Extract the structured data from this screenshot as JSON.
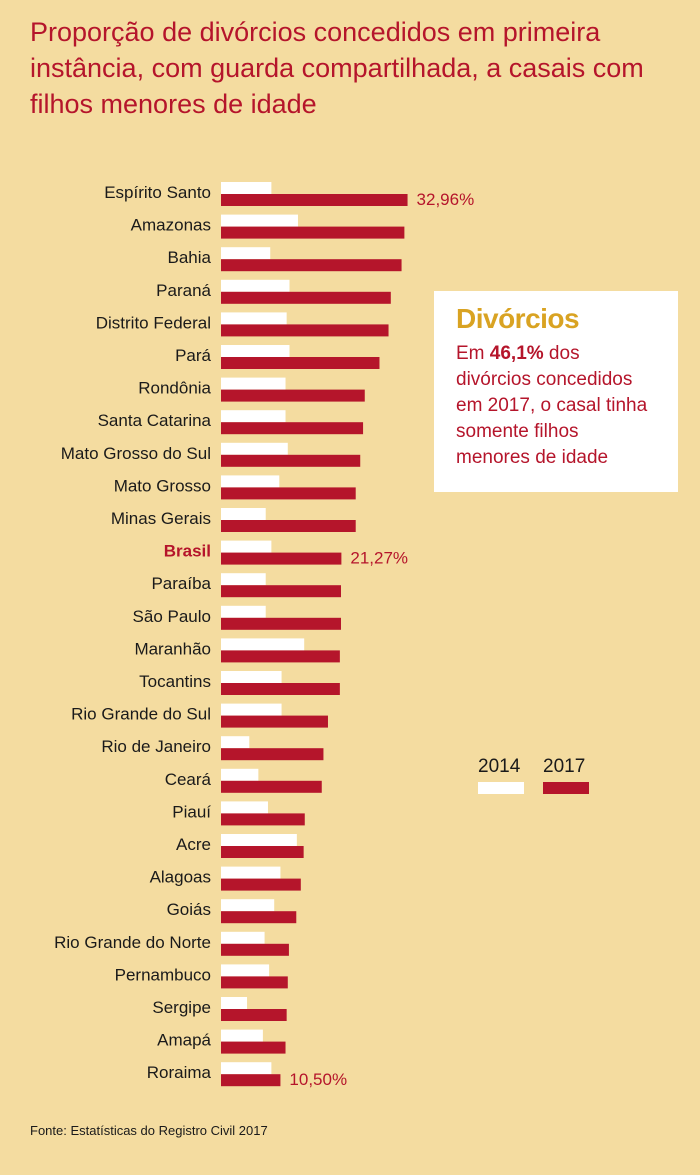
{
  "title": "Proporção de divórcios concedidos em primeira instância, com guarda compartilhada, a casais com filhos menores de idade",
  "infobox": {
    "heading": "Divórcios",
    "text_before": "Em ",
    "highlight": "46,1%",
    "text_after": " dos divórcios concedidos em 2017, o casal tinha somente filhos menores de idade"
  },
  "legend": {
    "label_2014": "2014",
    "label_2017": "2017"
  },
  "source": "Fonte: Estatísticas do Registro Civil 2017",
  "colors": {
    "s2014": "#ffffff",
    "s2017": "#b5152b",
    "background": "#f4dca0",
    "highlight": "#b5152b",
    "heading": "#d9a322"
  },
  "chart_data": {
    "type": "bar",
    "orientation": "horizontal",
    "title": "Proporção de divórcios concedidos em primeira instância, com guarda compartilhada, a casais com filhos menores de idade",
    "categories": [
      "Espírito Santo",
      "Amazonas",
      "Bahia",
      "Paraná",
      "Distrito Federal",
      "Pará",
      "Rondônia",
      "Santa Catarina",
      "Mato Grosso do Sul",
      "Mato Grosso",
      "Minas Gerais",
      "Brasil",
      "Paraíba",
      "São Paulo",
      "Maranhão",
      "Tocantins",
      "Rio Grande do Sul",
      "Rio de Janeiro",
      "Ceará",
      "Piauí",
      "Acre",
      "Alagoas",
      "Goiás",
      "Rio Grande do Norte",
      "Pernambuco",
      "Sergipe",
      "Amapá",
      "Roraima"
    ],
    "highlight_category": "Brasil",
    "unit": "%",
    "series": [
      {
        "name": "2014",
        "values": [
          8.9,
          13.6,
          8.7,
          12.1,
          11.6,
          12.1,
          11.4,
          11.4,
          11.8,
          10.3,
          7.9,
          8.9,
          7.9,
          7.9,
          14.7,
          10.7,
          10.7,
          5.0,
          6.6,
          8.3,
          13.4,
          10.5,
          9.4,
          7.7,
          8.5,
          4.6,
          7.4,
          8.9
        ]
      },
      {
        "name": "2017",
        "values": [
          32.96,
          32.4,
          31.9,
          30.0,
          29.6,
          28.0,
          25.4,
          25.1,
          24.6,
          23.8,
          23.8,
          21.27,
          21.2,
          21.2,
          21.0,
          21.0,
          18.9,
          18.1,
          17.8,
          14.8,
          14.6,
          14.1,
          13.3,
          12.0,
          11.8,
          11.6,
          11.4,
          10.5
        ]
      }
    ],
    "data_labels": [
      {
        "category": "Espírito Santo",
        "series": "2017",
        "text": "32,96%"
      },
      {
        "category": "Brasil",
        "series": "2017",
        "text": "21,27%"
      },
      {
        "category": "Roraima",
        "series": "2017",
        "text": "10,50%"
      }
    ],
    "xlim": [
      0,
      35
    ],
    "grid": false,
    "legend_position": "right"
  }
}
